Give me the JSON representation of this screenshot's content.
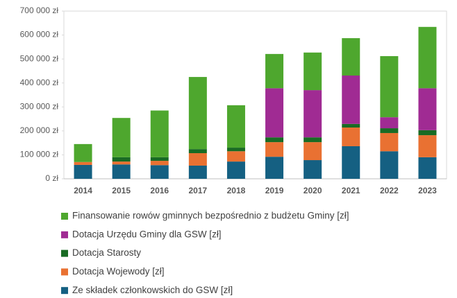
{
  "chart_data": {
    "type": "stacked_bar",
    "categories": [
      "2014",
      "2015",
      "2016",
      "2017",
      "2018",
      "2019",
      "2020",
      "2021",
      "2022",
      "2023"
    ],
    "series": [
      {
        "name": "Ze składek członkowskich do GSW [zł]",
        "color": "#156082",
        "values": [
          58000,
          60000,
          57000,
          55000,
          72000,
          92000,
          78000,
          136000,
          115000,
          90000
        ]
      },
      {
        "name": "Dotacja Wojewody [zł]",
        "color": "#e97132",
        "values": [
          12000,
          12000,
          18000,
          52000,
          43000,
          61000,
          75000,
          78000,
          76000,
          92000
        ]
      },
      {
        "name": "Dotacja Starosty",
        "color": "#196b24",
        "values": [
          0,
          18000,
          15000,
          17000,
          15000,
          20000,
          20000,
          15000,
          20000,
          21000
        ]
      },
      {
        "name": "Dotacja Urzędu Gminy dla GSW [zł]",
        "color": "#a02b93",
        "values": [
          0,
          0,
          0,
          0,
          0,
          205000,
          197000,
          202000,
          46000,
          175000
        ]
      },
      {
        "name": "Finansowanie rowów gminnych bezpośrednio z budżetu Gminy [zł]",
        "color": "#4ea72e",
        "values": [
          75000,
          164000,
          195000,
          301000,
          177000,
          143000,
          157000,
          156000,
          255000,
          256000
        ]
      }
    ],
    "ylim": [
      0,
      700000
    ],
    "yticks": [
      {
        "value": 0,
        "label": "0 zł"
      },
      {
        "value": 100000,
        "label": "100 000 zł"
      },
      {
        "value": 200000,
        "label": "200 000 zł"
      },
      {
        "value": 300000,
        "label": "300 000 zł"
      },
      {
        "value": 400000,
        "label": "400 000 zł"
      },
      {
        "value": 500000,
        "label": "500 000 zł"
      },
      {
        "value": 600000,
        "label": "600 000 zł"
      },
      {
        "value": 700000,
        "label": "700 000 zł"
      }
    ],
    "legend": "bottom"
  }
}
